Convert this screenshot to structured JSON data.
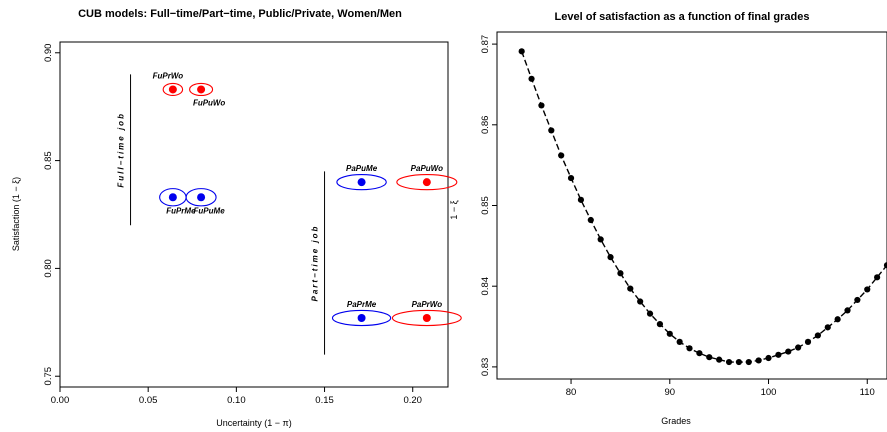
{
  "chart_data": [
    {
      "type": "scatter",
      "title": "CUB models: Full−time/Part−time, Public/Private, Women/Men",
      "xlabel": "Uncertainty     (1 − π)",
      "ylabel": "Satisfaction     (1 − ξ)",
      "xlim": [
        0.0,
        0.22
      ],
      "ylim": [
        0.745,
        0.905
      ],
      "x_ticks": [
        "0.00",
        "0.05",
        "0.10",
        "0.15",
        "0.20"
      ],
      "x_tick_values": [
        0.0,
        0.05,
        0.1,
        0.15,
        0.2
      ],
      "y_ticks": [
        "0.75",
        "0.80",
        "0.85",
        "0.90"
      ],
      "y_tick_values": [
        0.75,
        0.8,
        0.85,
        0.9
      ],
      "points": [
        {
          "label": "FuPrWo",
          "x": 0.064,
          "y": 0.883,
          "color": "#ff0000"
        },
        {
          "label": "FuPuWo",
          "x": 0.08,
          "y": 0.883,
          "color": "#ff0000"
        },
        {
          "label": "FuPrMe",
          "x": 0.064,
          "y": 0.833,
          "color": "#0000ee"
        },
        {
          "label": "FuPuMe",
          "x": 0.08,
          "y": 0.833,
          "color": "#0000ee"
        },
        {
          "label": "PaPuMe",
          "x": 0.171,
          "y": 0.84,
          "color": "#0000ee"
        },
        {
          "label": "PaPuWo",
          "x": 0.208,
          "y": 0.84,
          "color": "#ff0000"
        },
        {
          "label": "PaPrMe",
          "x": 0.171,
          "y": 0.777,
          "color": "#0000ee"
        },
        {
          "label": "PaPrWo",
          "x": 0.208,
          "y": 0.777,
          "color": "#ff0000"
        }
      ],
      "ellipses": [
        {
          "x": 0.064,
          "y": 0.883,
          "rx": 0.0055,
          "ry": 0.0028,
          "color": "#ff0000"
        },
        {
          "x": 0.08,
          "y": 0.883,
          "rx": 0.0065,
          "ry": 0.0028,
          "color": "#ff0000"
        },
        {
          "x": 0.064,
          "y": 0.833,
          "rx": 0.0075,
          "ry": 0.004,
          "color": "#0000ee"
        },
        {
          "x": 0.08,
          "y": 0.833,
          "rx": 0.0085,
          "ry": 0.004,
          "color": "#0000ee"
        },
        {
          "x": 0.171,
          "y": 0.84,
          "rx": 0.014,
          "ry": 0.0035,
          "color": "#0000ee"
        },
        {
          "x": 0.208,
          "y": 0.84,
          "rx": 0.017,
          "ry": 0.0035,
          "color": "#ff0000"
        },
        {
          "x": 0.171,
          "y": 0.777,
          "rx": 0.0165,
          "ry": 0.0035,
          "color": "#0000ee"
        },
        {
          "x": 0.208,
          "y": 0.777,
          "rx": 0.0195,
          "ry": 0.0035,
          "color": "#ff0000"
        }
      ],
      "group_lines": [
        {
          "label": "Full−time  job",
          "x": 0.04,
          "y_from": 0.82,
          "y_to": 0.89
        },
        {
          "label": "Part−time  job",
          "x": 0.15,
          "y_from": 0.76,
          "y_to": 0.845
        }
      ]
    },
    {
      "type": "line",
      "title": "Level of satisfaction as a function of final grades",
      "xlabel": "Grades",
      "ylabel": "1 − ξ",
      "xlim": [
        72.5,
        112.0
      ],
      "ylim": [
        0.8285,
        0.8715
      ],
      "x_ticks": [
        "80",
        "90",
        "100",
        "110"
      ],
      "x_tick_values": [
        80,
        90,
        100,
        110
      ],
      "y_ticks": [
        "0.83",
        "0.84",
        "0.85",
        "0.86",
        "0.87"
      ],
      "y_tick_values": [
        0.83,
        0.84,
        0.85,
        0.86,
        0.87
      ],
      "x": [
        75,
        76,
        77,
        78,
        79,
        80,
        81,
        82,
        83,
        84,
        85,
        86,
        87,
        88,
        89,
        90,
        91,
        92,
        93,
        94,
        95,
        96,
        97,
        98,
        99,
        100,
        101,
        102,
        103,
        104,
        105,
        106,
        107,
        108,
        109,
        110,
        111,
        112
      ],
      "y": [
        0.8691,
        0.8657,
        0.8624,
        0.8593,
        0.8562,
        0.8534,
        0.8507,
        0.8482,
        0.8458,
        0.8436,
        0.8416,
        0.8397,
        0.8381,
        0.8366,
        0.8353,
        0.8341,
        0.8331,
        0.8323,
        0.8317,
        0.8312,
        0.8309,
        0.8306,
        0.8306,
        0.8306,
        0.8308,
        0.8311,
        0.8315,
        0.8319,
        0.8324,
        0.8331,
        0.8339,
        0.8349,
        0.8359,
        0.837,
        0.8383,
        0.8396,
        0.8411,
        0.8426
      ]
    }
  ]
}
